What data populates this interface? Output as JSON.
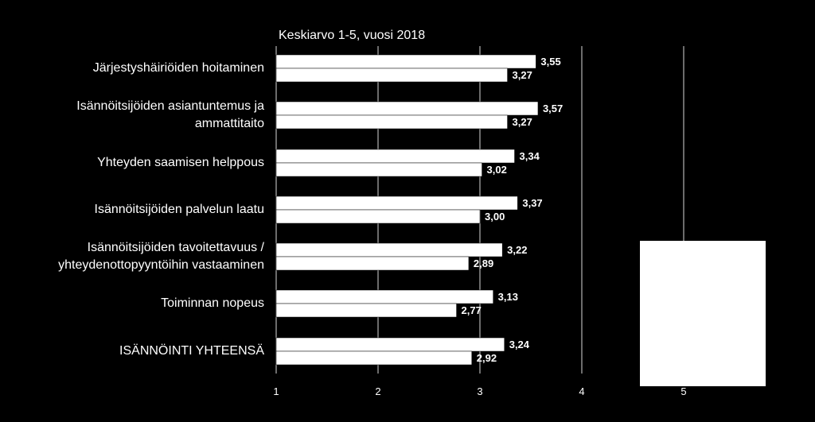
{
  "chart_data": {
    "type": "bar",
    "orientation": "horizontal",
    "title": "Keskiarvo 1-5, vuosi 2018",
    "categories": [
      "Järjestyshäiriöiden hoitaminen",
      "Isännöitsijöiden asiantuntemus ja\nammattitaito",
      "Yhteyden saamisen helppous",
      "Isännöitsijöiden palvelun laatu",
      "Isännöitsijöiden tavoitettavuus /\nyhteydenottopyyntöihin vastaaminen",
      "Toiminnan nopeus",
      "ISÄNNÖINTI YHTEENSÄ"
    ],
    "series": [
      {
        "values": [
          3.55,
          3.57,
          3.34,
          3.37,
          3.22,
          3.13,
          3.24
        ],
        "color": "#ffffff"
      },
      {
        "values": [
          3.27,
          3.27,
          3.02,
          3.0,
          2.89,
          2.77,
          2.92
        ],
        "color": "#ffffff"
      }
    ],
    "value_labels": [
      [
        "3,55",
        "3,57",
        "3,34",
        "3,37",
        "3,22",
        "3,13",
        "3,24"
      ],
      [
        "3,27",
        "3,27",
        "3,02",
        "3,00",
        "2,89",
        "2,77",
        "2,92"
      ]
    ],
    "xlim": [
      1,
      5
    ],
    "xticks": [
      1,
      2,
      3,
      4,
      5
    ],
    "xtick_labels": [
      "1",
      "2",
      "3",
      "4",
      "5"
    ],
    "grid": true,
    "legend": "right"
  }
}
